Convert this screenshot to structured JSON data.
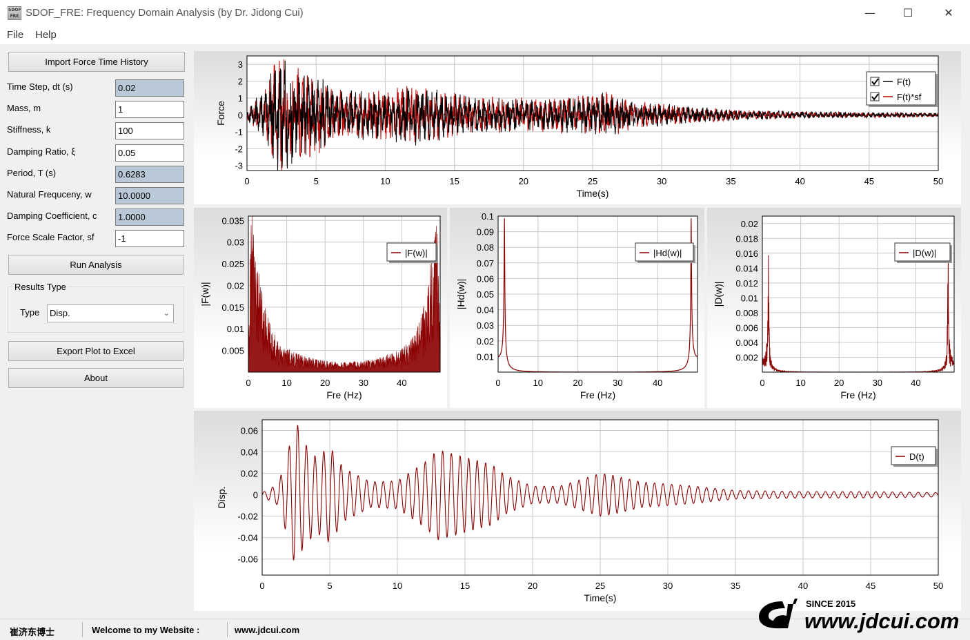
{
  "window": {
    "title": "SDOF_FRE: Frequency Domain Analysis (by Dr. Jidong Cui)",
    "icon_text": "SDOF FRE",
    "minimize_glyph": "—",
    "maximize_glyph": "☐",
    "close_glyph": "✕"
  },
  "menu": {
    "file": "File",
    "help": "Help"
  },
  "controls": {
    "import_button": "Import Force Time History",
    "fields": [
      {
        "label": "Time Step, dt (s)",
        "value": "0.02",
        "readonly": true
      },
      {
        "label": "Mass, m",
        "value": "1",
        "readonly": false
      },
      {
        "label": "Stiffness, k",
        "value": "100",
        "readonly": false
      },
      {
        "label": "Damping Ratio, ξ",
        "value": "0.05",
        "readonly": false
      },
      {
        "label": "Period, T (s)",
        "value": "0.6283",
        "readonly": true
      },
      {
        "label": "Natural Frequceny, w",
        "value": "10.0000",
        "readonly": true
      },
      {
        "label": "Damping Coefficient, c",
        "value": "1.0000",
        "readonly": true
      },
      {
        "label": "Force Scale Factor, sf",
        "value": "-1",
        "readonly": false
      }
    ],
    "run_button": "Run Analysis",
    "results_group": "Results Type",
    "type_label": "Type",
    "type_value": "Disp.",
    "export_button": "Export Plot to Excel",
    "about_button": "About"
  },
  "chart_data": [
    {
      "id": "force",
      "type": "line",
      "xlabel": "Time(s)",
      "ylabel": "Force",
      "xlim": [
        0,
        50
      ],
      "ylim": [
        -3.3,
        3.5
      ],
      "xticks": [
        "0",
        "5",
        "10",
        "15",
        "20",
        "25",
        "30",
        "35",
        "40",
        "45",
        "50"
      ],
      "yticks": [
        "3",
        "2",
        "1",
        "0",
        "-1",
        "-2",
        "-3"
      ],
      "legend_position": "top-right",
      "grid": true,
      "series": [
        {
          "name": "F(t)",
          "color": "#000000",
          "checked": true,
          "envelope": [
            [
              0,
              0.3
            ],
            [
              1.5,
              1.6
            ],
            [
              2.2,
              3.3
            ],
            [
              3,
              2.6
            ],
            [
              4,
              2.3
            ],
            [
              5,
              2.0
            ],
            [
              7,
              1.2
            ],
            [
              10,
              1.3
            ],
            [
              12,
              1.6
            ],
            [
              15,
              1.1
            ],
            [
              18,
              0.9
            ],
            [
              22,
              0.9
            ],
            [
              25,
              1.0
            ],
            [
              26,
              1.2
            ],
            [
              28,
              0.7
            ],
            [
              32,
              0.45
            ],
            [
              36,
              0.25
            ],
            [
              40,
              0.18
            ],
            [
              45,
              0.15
            ],
            [
              50,
              0.1
            ]
          ]
        },
        {
          "name": "F(t)*sf",
          "color": "#c00000",
          "checked": true,
          "envelope": [
            [
              0,
              0.3
            ],
            [
              1.5,
              1.6
            ],
            [
              2.2,
              3.3
            ],
            [
              3,
              2.6
            ],
            [
              4,
              2.3
            ],
            [
              5,
              2.0
            ],
            [
              7,
              1.2
            ],
            [
              10,
              1.3
            ],
            [
              12,
              1.6
            ],
            [
              15,
              1.1
            ],
            [
              18,
              0.9
            ],
            [
              22,
              0.9
            ],
            [
              25,
              1.0
            ],
            [
              26,
              1.2
            ],
            [
              28,
              0.7
            ],
            [
              32,
              0.45
            ],
            [
              36,
              0.25
            ],
            [
              40,
              0.18
            ],
            [
              45,
              0.15
            ],
            [
              50,
              0.1
            ]
          ]
        }
      ]
    },
    {
      "id": "fw",
      "type": "area",
      "xlabel": "Fre (Hz)",
      "ylabel": "|F(w)|",
      "xlim": [
        0,
        50
      ],
      "ylim": [
        0,
        0.036
      ],
      "xticks": [
        "0",
        "10",
        "20",
        "30",
        "40"
      ],
      "yticks": [
        "0.035",
        "0.03",
        "0.025",
        "0.02",
        "0.015",
        "0.01",
        "0.005"
      ],
      "legend_position": "top-right",
      "grid": true,
      "series": [
        {
          "name": "|F(w)|",
          "color": "#8b0000",
          "envelope": [
            [
              0,
              0.004
            ],
            [
              0.8,
              0.034
            ],
            [
              1.5,
              0.028
            ],
            [
              2.5,
              0.022
            ],
            [
              4,
              0.014
            ],
            [
              6,
              0.009
            ],
            [
              8,
              0.006
            ],
            [
              12,
              0.004
            ],
            [
              18,
              0.0025
            ],
            [
              25,
              0.002
            ],
            [
              32,
              0.0025
            ],
            [
              38,
              0.004
            ],
            [
              42,
              0.006
            ],
            [
              44,
              0.009
            ],
            [
              46,
              0.014
            ],
            [
              47.5,
              0.022
            ],
            [
              48.5,
              0.028
            ],
            [
              49.2,
              0.034
            ],
            [
              50,
              0.004
            ]
          ]
        }
      ]
    },
    {
      "id": "hw",
      "type": "line",
      "xlabel": "Fre (Hz)",
      "ylabel": "|Hd(w)|",
      "xlim": [
        0,
        50
      ],
      "ylim": [
        0,
        0.1
      ],
      "xticks": [
        "0",
        "10",
        "20",
        "30",
        "40"
      ],
      "yticks": [
        "0.1",
        "0.09",
        "0.08",
        "0.07",
        "0.06",
        "0.05",
        "0.04",
        "0.03",
        "0.02",
        "0.01"
      ],
      "legend_position": "top-right",
      "grid": true,
      "series": [
        {
          "name": "|Hd(w)|",
          "color": "#8b0000",
          "peak_freq": 1.59,
          "damping": 0.05
        }
      ]
    },
    {
      "id": "dw",
      "type": "line",
      "xlabel": "Fre (Hz)",
      "ylabel": "|D(w)|",
      "xlim": [
        0,
        50
      ],
      "ylim": [
        0,
        0.021
      ],
      "xticks": [
        "0",
        "10",
        "20",
        "30",
        "40"
      ],
      "yticks": [
        "0.02",
        "0.018",
        "0.016",
        "0.014",
        "0.012",
        "0.01",
        "0.008",
        "0.006",
        "0.004",
        "0.002"
      ],
      "legend_position": "top-right",
      "grid": true,
      "series": [
        {
          "name": "|D(w)|",
          "color": "#8b0000",
          "peak_freq": 1.59
        }
      ]
    },
    {
      "id": "disp",
      "type": "line",
      "xlabel": "Time(s)",
      "ylabel": "Disp.",
      "xlim": [
        0,
        50
      ],
      "ylim": [
        -0.075,
        0.07
      ],
      "xticks": [
        "0",
        "5",
        "10",
        "15",
        "20",
        "25",
        "30",
        "35",
        "40",
        "45",
        "50"
      ],
      "yticks": [
        "0.06",
        "0.04",
        "0.02",
        "0",
        "-0.02",
        "-0.04",
        "-0.06"
      ],
      "legend_position": "top-right",
      "grid": true,
      "series": [
        {
          "name": "D(t)",
          "color": "#8b0000",
          "period": 0.6283,
          "envelope": [
            [
              0,
              0.002
            ],
            [
              1.2,
              0.01
            ],
            [
              2.0,
              0.045
            ],
            [
              2.5,
              0.07
            ],
            [
              3.0,
              0.05
            ],
            [
              4,
              0.035
            ],
            [
              5,
              0.045
            ],
            [
              6,
              0.025
            ],
            [
              8,
              0.012
            ],
            [
              10,
              0.013
            ],
            [
              12,
              0.03
            ],
            [
              13,
              0.042
            ],
            [
              15,
              0.035
            ],
            [
              17,
              0.028
            ],
            [
              18,
              0.018
            ],
            [
              20,
              0.008
            ],
            [
              22,
              0.008
            ],
            [
              25,
              0.02
            ],
            [
              26,
              0.018
            ],
            [
              28,
              0.012
            ],
            [
              32,
              0.008
            ],
            [
              35,
              0.004
            ],
            [
              40,
              0.003
            ],
            [
              45,
              0.003
            ],
            [
              50,
              0.002
            ]
          ]
        }
      ]
    }
  ],
  "status": {
    "name_cn": "崔济东博士",
    "welcome": "Welcome to my Website :",
    "url": "www.jdcui.com"
  },
  "logo": {
    "since": "SINCE 2015",
    "site": "www.jdcui.com"
  }
}
